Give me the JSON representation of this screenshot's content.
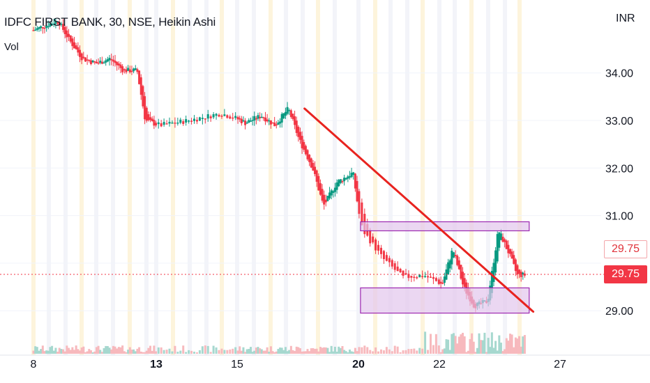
{
  "header": {
    "symbol_line": "IDFC FIRST BANK, 30, NSE, Heikin Ashi",
    "volume_label": "Vol"
  },
  "price_axis": {
    "currency": "INR",
    "tick_labels": [
      "34.00",
      "33.00",
      "32.00",
      "31.00",
      "29.00"
    ],
    "ticks": [
      34.0,
      33.0,
      32.0,
      31.0,
      29.0
    ],
    "badge_prev": "29.75",
    "badge_last": "29.75"
  },
  "time_axis": {
    "labels": [
      "8",
      "13",
      "15",
      "20",
      "22",
      "27"
    ],
    "bold": [
      "13",
      "20"
    ]
  },
  "colors": {
    "up": "#089981",
    "down": "#f23645",
    "trendline": "#e8231f",
    "zone_fill": "#e2c6ec",
    "zone_stroke": "#9c27b0",
    "session_band": "#fbf6e3",
    "last_price_line": "#f23645"
  },
  "chart_data": {
    "type": "candlestick",
    "title": "IDFC FIRST BANK, 30, NSE, Heikin Ashi",
    "currency": "INR",
    "ylim": [
      28.45,
      35.0
    ],
    "last_price": 29.75,
    "price_path": [
      [
        0,
        34.9
      ],
      [
        0.9,
        35.1
      ],
      [
        1.3,
        34.7
      ],
      [
        1.8,
        34.3
      ],
      [
        2.3,
        34.2
      ],
      [
        2.8,
        34.3
      ],
      [
        3.3,
        34.05
      ],
      [
        3.8,
        34.05
      ],
      [
        4.1,
        33.0
      ],
      [
        4.6,
        32.9
      ],
      [
        5.3,
        33.0
      ],
      [
        6.1,
        33.15
      ],
      [
        6.8,
        32.95
      ],
      [
        7.4,
        33.1
      ],
      [
        7.9,
        32.9
      ],
      [
        8.4,
        33.25
      ],
      [
        8.8,
        32.6
      ],
      [
        9.3,
        32.0
      ],
      [
        9.7,
        31.2
      ],
      [
        10.2,
        31.7
      ],
      [
        10.8,
        31.9
      ],
      [
        11.1,
        30.7
      ],
      [
        11.6,
        30.1
      ],
      [
        12.1,
        29.7
      ],
      [
        12.6,
        29.75
      ],
      [
        13.1,
        29.55
      ],
      [
        13.5,
        30.3
      ],
      [
        13.9,
        29.5
      ],
      [
        14.3,
        29.1
      ],
      [
        14.8,
        29.2
      ],
      [
        15.2,
        30.7
      ],
      [
        15.6,
        30.2
      ],
      [
        15.9,
        29.75
      ],
      [
        16.2,
        29.75
      ]
    ],
    "volume_scale": [
      0,
      1
    ],
    "annotations": [
      {
        "type": "trendline",
        "from": [
          9.0,
          33.25
        ],
        "to": [
          16.5,
          28.98
        ]
      },
      {
        "type": "zone",
        "x_range": [
          11.05,
          16.35
        ],
        "y_range": [
          30.68,
          30.87
        ]
      },
      {
        "type": "zone",
        "x_range": [
          11.05,
          16.35
        ],
        "y_range": [
          28.95,
          29.48
        ]
      }
    ]
  }
}
